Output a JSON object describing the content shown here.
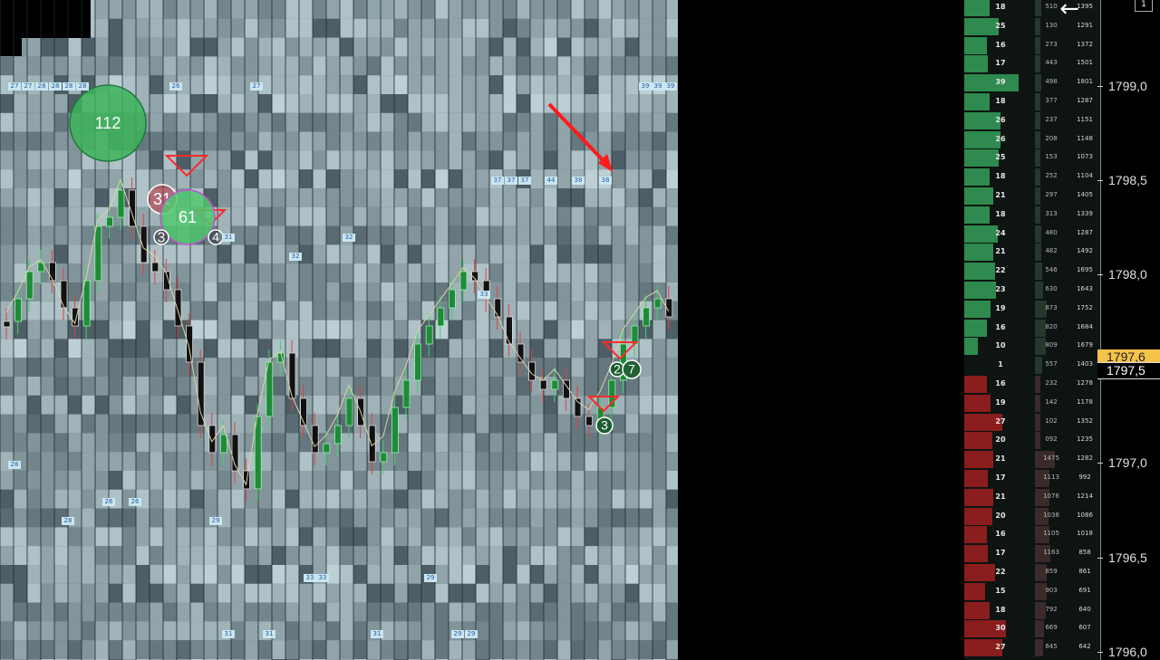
{
  "app": {
    "back_icon": "arrow-left-icon",
    "corner_button_label": "1"
  },
  "colors": {
    "bid": "#2e8a4e",
    "ask": "#8a1d1d",
    "last_price": "#f5c24a",
    "background": "#000000"
  },
  "price_axis": {
    "ticks": [
      {
        "price": "1799,0"
      },
      {
        "price": "1798,5"
      },
      {
        "price": "1798,0"
      },
      {
        "price": "1797,0"
      },
      {
        "price": "1796,5"
      },
      {
        "price": "1796,0"
      }
    ],
    "last_price": "1797,6",
    "current_price": "1797,5"
  },
  "dom_ladder": {
    "rows": [
      {
        "size": "18",
        "vol": "510",
        "total": "1395",
        "side": "bid"
      },
      {
        "size": "25",
        "vol": "130",
        "total": "1291",
        "side": "bid"
      },
      {
        "size": "16",
        "vol": "273",
        "total": "1372",
        "side": "bid"
      },
      {
        "size": "17",
        "vol": "443",
        "total": "1501",
        "side": "bid"
      },
      {
        "size": "39",
        "vol": "498",
        "total": "1801",
        "side": "bid"
      },
      {
        "size": "18",
        "vol": "377",
        "total": "1287",
        "side": "bid"
      },
      {
        "size": "26",
        "vol": "237",
        "total": "1151",
        "side": "bid"
      },
      {
        "size": "26",
        "vol": "208",
        "total": "1148",
        "side": "bid"
      },
      {
        "size": "25",
        "vol": "153",
        "total": "1073",
        "side": "bid"
      },
      {
        "size": "18",
        "vol": "252",
        "total": "1104",
        "side": "bid"
      },
      {
        "size": "21",
        "vol": "297",
        "total": "1405",
        "side": "bid"
      },
      {
        "size": "18",
        "vol": "313",
        "total": "1339",
        "side": "bid"
      },
      {
        "size": "24",
        "vol": "480",
        "total": "1287",
        "side": "bid"
      },
      {
        "size": "21",
        "vol": "482",
        "total": "1492",
        "side": "bid"
      },
      {
        "size": "22",
        "vol": "546",
        "total": "1695",
        "side": "bid"
      },
      {
        "size": "23",
        "vol": "630",
        "total": "1643",
        "side": "bid"
      },
      {
        "size": "19",
        "vol": "873",
        "total": "1752",
        "side": "bid"
      },
      {
        "size": "16",
        "vol": "820",
        "total": "1684",
        "side": "bid"
      },
      {
        "size": "10",
        "vol": "809",
        "total": "1679",
        "side": "bid"
      },
      {
        "size": "1",
        "vol": "557",
        "total": "1403",
        "side": "none"
      },
      {
        "size": "16",
        "vol": "232",
        "total": "1278",
        "side": "ask"
      },
      {
        "size": "19",
        "vol": "142",
        "total": "1178",
        "side": "ask"
      },
      {
        "size": "27",
        "vol": "102",
        "total": "1352",
        "side": "ask"
      },
      {
        "size": "20",
        "vol": "092",
        "total": "1235",
        "side": "ask"
      },
      {
        "size": "21",
        "vol": "1475",
        "total": "1282",
        "side": "ask"
      },
      {
        "size": "17",
        "vol": "1113",
        "total": "992",
        "side": "ask"
      },
      {
        "size": "21",
        "vol": "1076",
        "total": "1214",
        "side": "ask"
      },
      {
        "size": "20",
        "vol": "1036",
        "total": "1086",
        "side": "ask"
      },
      {
        "size": "16",
        "vol": "1105",
        "total": "1018",
        "side": "ask"
      },
      {
        "size": "17",
        "vol": "1163",
        "total": "858",
        "side": "ask"
      },
      {
        "size": "22",
        "vol": "859",
        "total": "861",
        "side": "ask"
      },
      {
        "size": "15",
        "vol": "903",
        "total": "691",
        "side": "ask"
      },
      {
        "size": "18",
        "vol": "792",
        "total": "640",
        "side": "ask"
      },
      {
        "size": "30",
        "vol": "669",
        "total": "607",
        "side": "ask"
      },
      {
        "size": "27",
        "vol": "645",
        "total": "642",
        "side": "ask"
      }
    ]
  },
  "heatmap": {
    "level_labels": [
      {
        "text": "27"
      },
      {
        "text": "27"
      },
      {
        "text": "28"
      },
      {
        "text": "28"
      },
      {
        "text": "28"
      },
      {
        "text": "28"
      },
      {
        "text": "26"
      },
      {
        "text": "27"
      },
      {
        "text": "39"
      },
      {
        "text": "39"
      },
      {
        "text": "39"
      },
      {
        "text": "37"
      },
      {
        "text": "37"
      },
      {
        "text": "37"
      },
      {
        "text": "44"
      },
      {
        "text": "38"
      },
      {
        "text": "38"
      },
      {
        "text": "31"
      },
      {
        "text": "32"
      },
      {
        "text": "32"
      },
      {
        "text": "33"
      },
      {
        "text": "28"
      },
      {
        "text": "26"
      },
      {
        "text": "26"
      },
      {
        "text": "28"
      },
      {
        "text": "29"
      },
      {
        "text": "33"
      },
      {
        "text": "33"
      },
      {
        "text": "29"
      },
      {
        "text": "31"
      },
      {
        "text": "31"
      },
      {
        "text": "31"
      },
      {
        "text": "29"
      },
      {
        "text": "29"
      }
    ],
    "bubbles": [
      {
        "value": "112"
      },
      {
        "value": "31"
      },
      {
        "value": "61"
      },
      {
        "value": "3"
      },
      {
        "value": "4"
      },
      {
        "value": "2"
      },
      {
        "value": "7"
      },
      {
        "value": "3"
      }
    ]
  }
}
